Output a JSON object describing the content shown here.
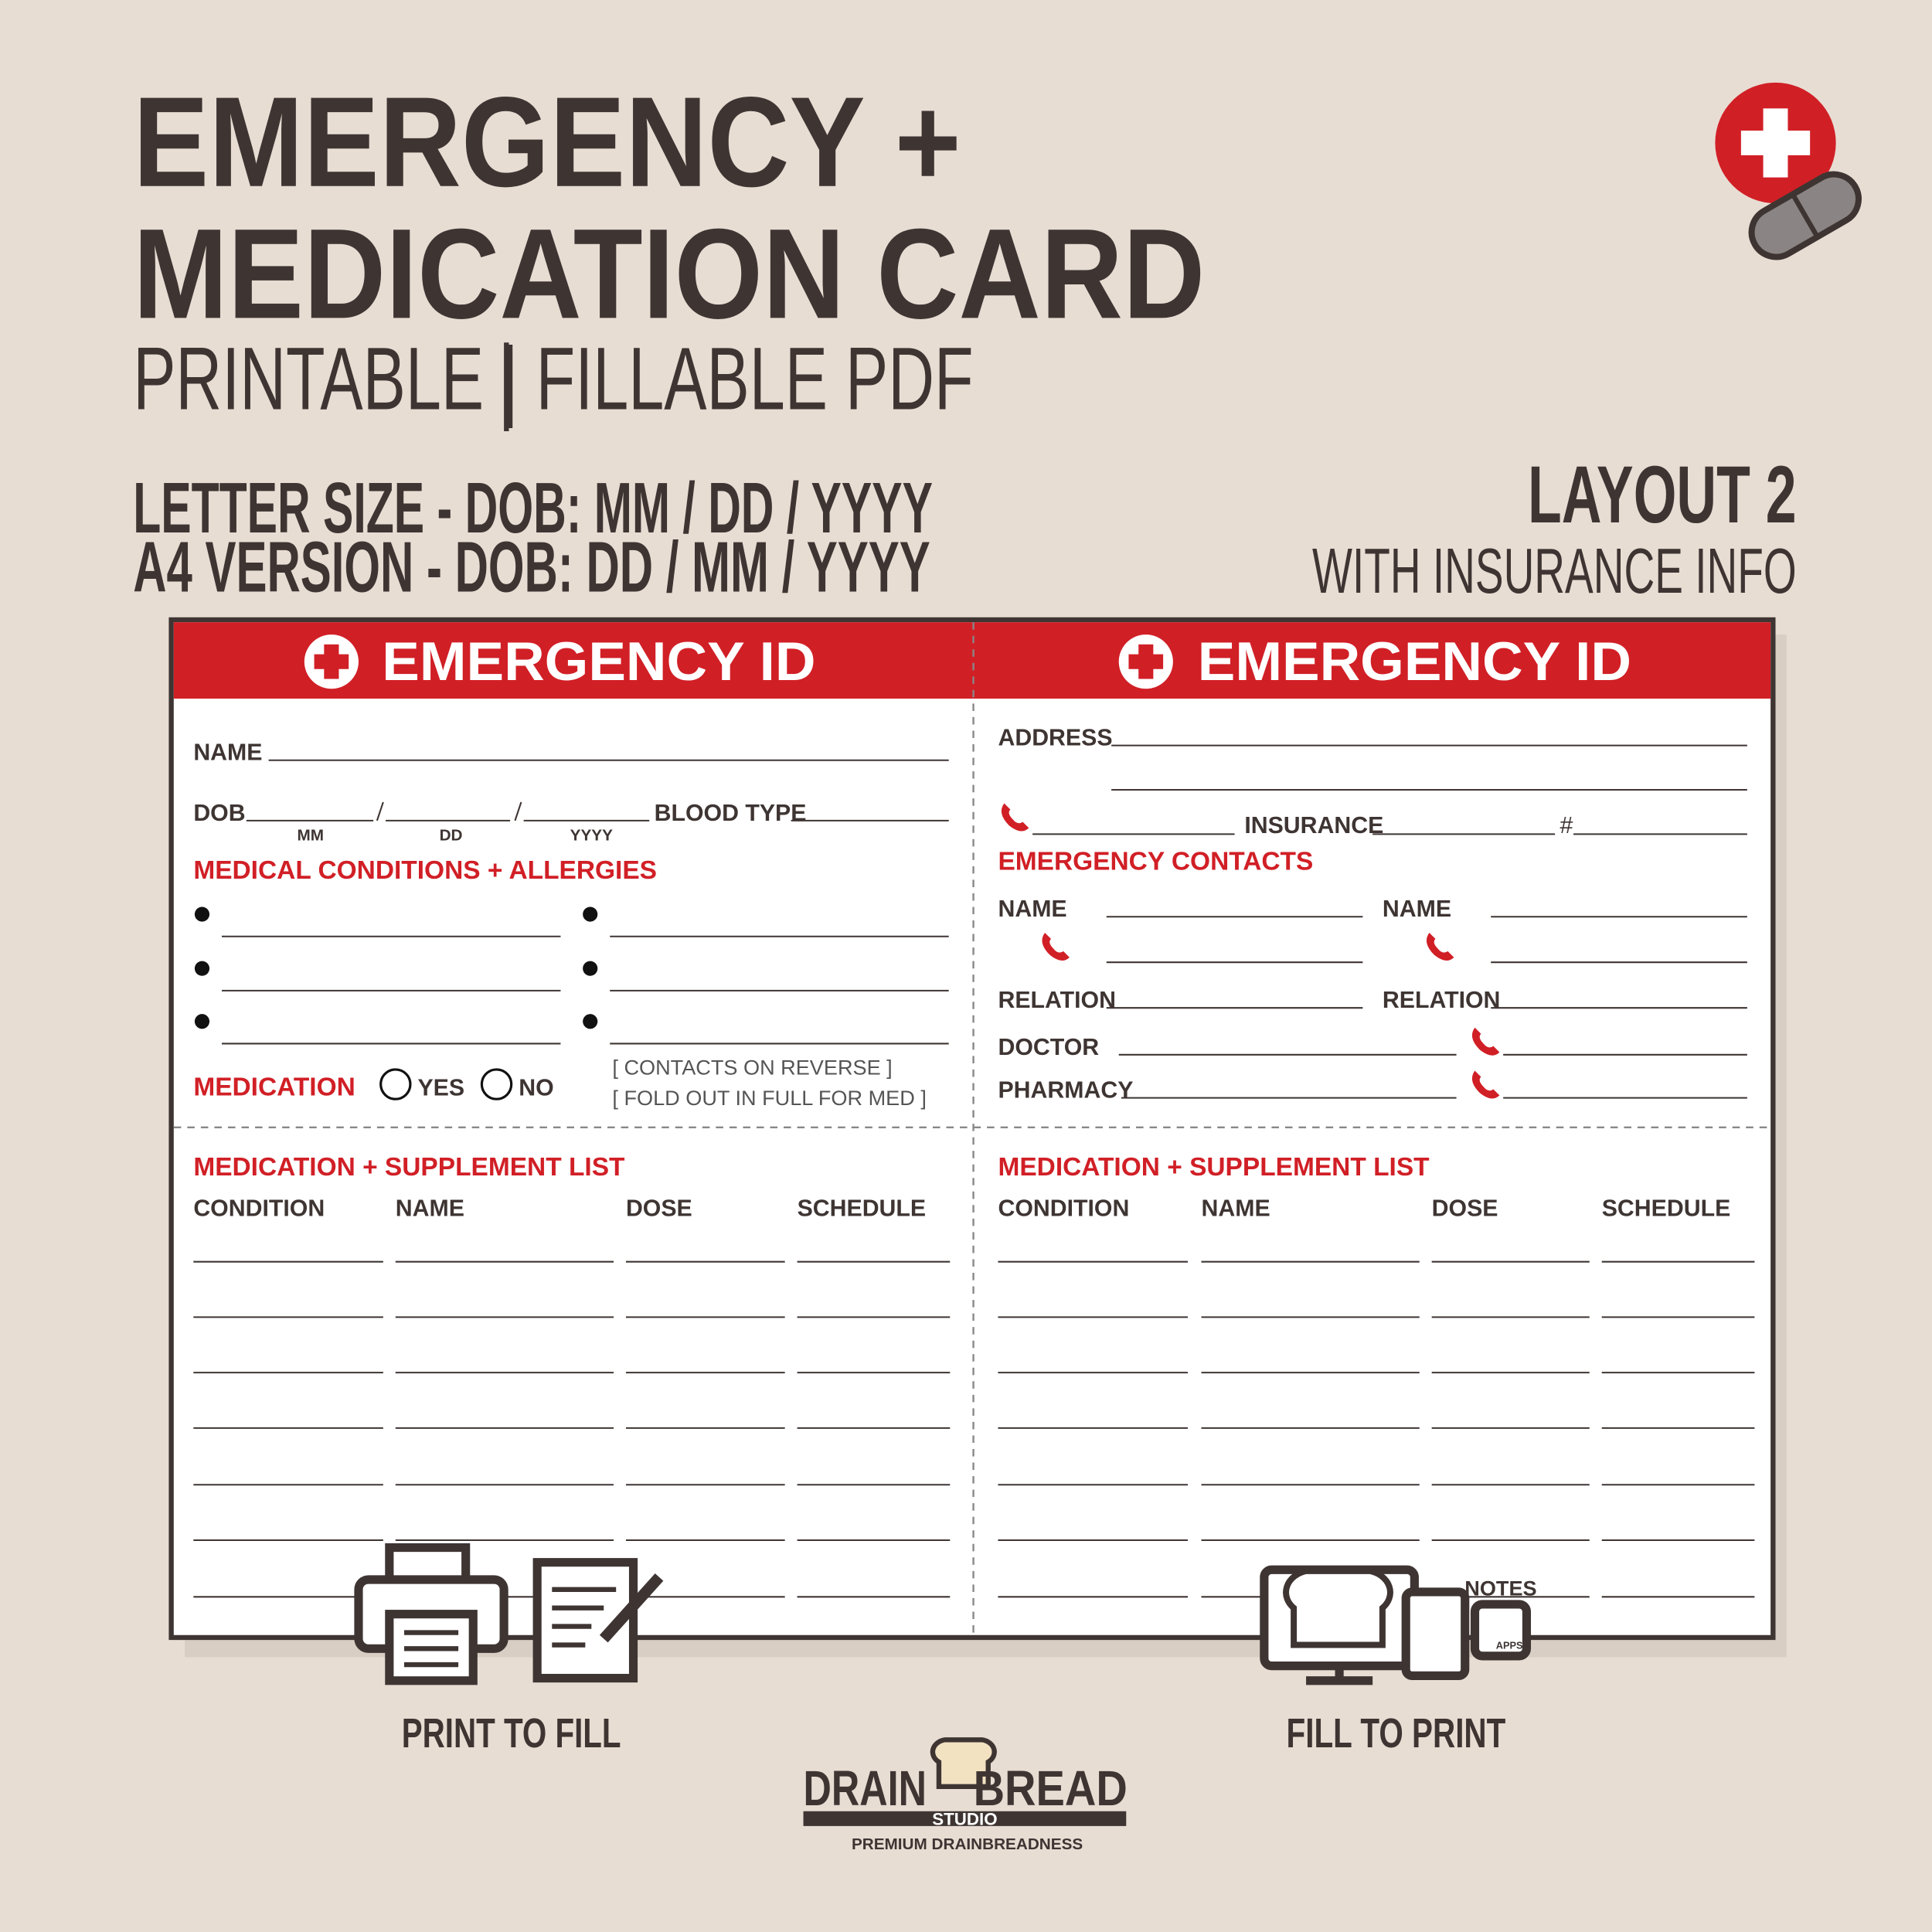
{
  "header": {
    "title_line1": "EMERGENCY +",
    "title_line2": "MEDICATION CARD",
    "subtitle": "PRINTABLE | FILLABLE PDF",
    "sizes": [
      "LETTER SIZE - DOB: MM / DD / YYYY",
      "A4 VERSION - DOB: DD / MM / YYYY"
    ],
    "layout_title": "LAYOUT 2",
    "layout_subtitle": "WITH INSURANCE INFO"
  },
  "card": {
    "left": {
      "heading": "EMERGENCY ID",
      "name": "NAME",
      "dob": "DOB",
      "mm": "MM",
      "dd": "DD",
      "yyyy": "YYYY",
      "blood_type": "BLOOD TYPE",
      "conditions": "MEDICAL CONDITIONS + ALLERGIES",
      "medication": "MEDICATION",
      "yes": "YES",
      "no": "NO",
      "note1": "[ CONTACTS ON REVERSE ]",
      "note2": "[ FOLD OUT IN FULL FOR MED ]"
    },
    "right": {
      "heading": "EMERGENCY ID",
      "address": "ADDRESS",
      "insurance": "INSURANCE",
      "number": "#",
      "contacts": "EMERGENCY CONTACTS",
      "name1": "NAME",
      "name2": "NAME",
      "relation1": "RELATION",
      "relation2": "RELATION",
      "doctor": "DOCTOR",
      "pharmacy": "PHARMACY"
    },
    "list_left": {
      "title": "MEDICATION + SUPPLEMENT LIST",
      "columns": [
        "CONDITION",
        "NAME",
        "DOSE",
        "SCHEDULE"
      ]
    },
    "list_right": {
      "title": "MEDICATION + SUPPLEMENT LIST",
      "columns": [
        "CONDITION",
        "NAME",
        "DOSE",
        "SCHEDULE"
      ]
    }
  },
  "footer": {
    "print_to_fill": "PRINT TO FILL",
    "fill_to_print": "FILL TO PRINT",
    "notes": "NOTES",
    "apps": "APPS",
    "logo_left": "DRAIN",
    "logo_right": "BREAD",
    "logo_studio": "STUDIO",
    "tagline": "PREMIUM DRAINBREADNESS"
  }
}
